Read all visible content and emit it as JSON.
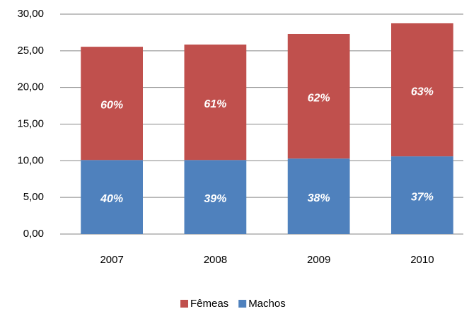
{
  "chart_data": {
    "type": "stacked_bar",
    "categories": [
      "2007",
      "2008",
      "2009",
      "2010"
    ],
    "series": [
      {
        "name": "Fêmeas",
        "color": "#c0504d",
        "values": [
          15.45,
          15.75,
          17.0,
          18.15
        ],
        "labels": [
          "60%",
          "61%",
          "62%",
          "63%"
        ]
      },
      {
        "name": "Machos",
        "color": "#4f81bd",
        "values": [
          10.1,
          10.1,
          10.3,
          10.6
        ],
        "labels": [
          "40%",
          "39%",
          "38%",
          "37%"
        ]
      }
    ],
    "ylim": [
      0,
      30
    ],
    "yticks": [
      {
        "value": 0,
        "label": "0,00"
      },
      {
        "value": 5,
        "label": "5,00"
      },
      {
        "value": 10,
        "label": "10,00"
      },
      {
        "value": 15,
        "label": "15,00"
      },
      {
        "value": 20,
        "label": "20,00"
      },
      {
        "value": 25,
        "label": "25,00"
      },
      {
        "value": 30,
        "label": "30,00"
      }
    ],
    "grid": true
  }
}
